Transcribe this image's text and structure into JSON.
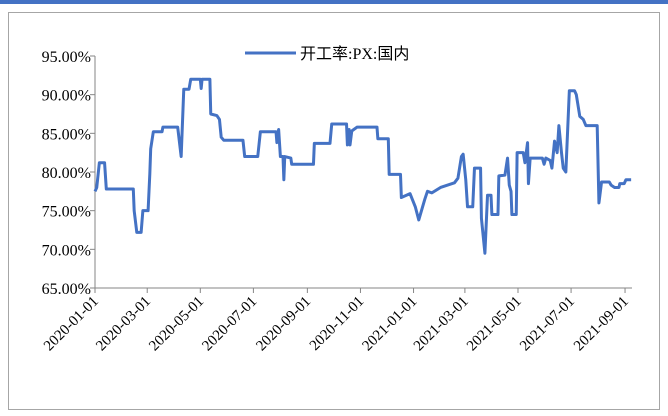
{
  "chart_data": {
    "type": "line",
    "x": [
      "2020-01-01",
      "2020-01-03",
      "2020-01-06",
      "2020-01-12",
      "2020-01-14",
      "2020-02-14",
      "2020-02-15",
      "2020-02-18",
      "2020-02-23",
      "2020-02-25",
      "2020-03-02",
      "2020-03-04",
      "2020-03-05",
      "2020-03-08",
      "2020-03-18",
      "2020-03-19",
      "2020-04-05",
      "2020-04-09",
      "2020-04-12",
      "2020-04-18",
      "2020-04-20",
      "2020-05-01",
      "2020-05-02",
      "2020-05-03",
      "2020-05-12",
      "2020-05-13",
      "2020-05-20",
      "2020-05-23",
      "2020-05-25",
      "2020-05-28",
      "2020-06-19",
      "2020-06-21",
      "2020-07-06",
      "2020-07-09",
      "2020-07-27",
      "2020-07-28",
      "2020-07-30",
      "2020-08-01",
      "2020-08-04",
      "2020-08-05",
      "2020-08-06",
      "2020-08-13",
      "2020-08-14",
      "2020-08-24",
      "2020-09-08",
      "2020-09-09",
      "2020-09-27",
      "2020-09-29",
      "2020-10-16",
      "2020-10-17",
      "2020-10-19",
      "2020-10-20",
      "2020-10-22",
      "2020-10-28",
      "2020-11-20",
      "2020-11-21",
      "2020-12-03",
      "2020-12-04",
      "2020-12-17",
      "2020-12-18",
      "2020-12-28",
      "2021-01-03",
      "2021-01-07",
      "2021-01-14",
      "2021-01-17",
      "2021-01-22",
      "2021-02-01",
      "2021-02-17",
      "2021-02-21",
      "2021-02-25",
      "2021-02-27",
      "2021-03-02",
      "2021-03-04",
      "2021-03-10",
      "2021-03-12",
      "2021-03-19",
      "2021-03-20",
      "2021-03-24",
      "2021-03-27",
      "2021-03-31",
      "2021-04-01",
      "2021-04-08",
      "2021-04-09",
      "2021-04-16",
      "2021-04-19",
      "2021-04-21",
      "2021-04-23",
      "2021-04-24",
      "2021-04-29",
      "2021-04-30",
      "2021-05-07",
      "2021-05-09",
      "2021-05-12",
      "2021-05-13",
      "2021-05-15",
      "2021-05-29",
      "2021-05-31",
      "2021-06-02",
      "2021-06-07",
      "2021-06-09",
      "2021-06-12",
      "2021-06-15",
      "2021-06-17",
      "2021-06-20",
      "2021-06-22",
      "2021-06-25",
      "2021-06-29",
      "2021-07-05",
      "2021-07-07",
      "2021-07-11",
      "2021-07-15",
      "2021-07-18",
      "2021-07-31",
      "2021-08-02",
      "2021-08-05",
      "2021-08-14",
      "2021-08-16",
      "2021-08-20",
      "2021-08-25",
      "2021-08-26",
      "2021-08-31",
      "2021-09-02",
      "2021-09-08"
    ],
    "series": [
      {
        "name": "开工率:PX:国内",
        "color": "#4472c4",
        "values": [
          77.5,
          78,
          81.2,
          81.2,
          77.8,
          77.8,
          75,
          72.2,
          72.2,
          75,
          75,
          79.8,
          83,
          85.2,
          85.2,
          85.8,
          85.8,
          82,
          90.7,
          90.7,
          92,
          92,
          90.8,
          92,
          92,
          87.5,
          87.3,
          86.8,
          84.5,
          84.1,
          84.1,
          82,
          82,
          85.2,
          85.2,
          83.8,
          85.5,
          82,
          82,
          79,
          82,
          81.8,
          81,
          81,
          81,
          83.7,
          83.7,
          86.2,
          86.2,
          83.5,
          85.5,
          83.5,
          85.3,
          85.8,
          85.8,
          84.3,
          84.3,
          79.7,
          79.7,
          76.7,
          77.2,
          75.5,
          73.8,
          76.5,
          77.5,
          77.3,
          78,
          78.6,
          79.2,
          82,
          82.3,
          79,
          75.5,
          75.5,
          80.5,
          80.5,
          74,
          69.5,
          77,
          77,
          74.5,
          74.5,
          79.5,
          79.6,
          81.8,
          78.3,
          77.5,
          74.5,
          74.5,
          82.5,
          82.5,
          81.2,
          83.8,
          78.5,
          81.8,
          81.8,
          81,
          81.8,
          81.5,
          80.5,
          84,
          82.5,
          86,
          82.5,
          80.5,
          80,
          90.5,
          90.5,
          90,
          87.2,
          86.8,
          86,
          86,
          76,
          78.7,
          78.7,
          78.3,
          78,
          78,
          78.5,
          78.5,
          79,
          79
        ]
      }
    ],
    "xlim": [
      "2020-01-01",
      "2021-09-09"
    ],
    "xticks": [
      "2020-01-01",
      "2020-03-01",
      "2020-05-01",
      "2020-07-01",
      "2020-09-01",
      "2020-11-01",
      "2021-01-01",
      "2021-03-01",
      "2021-05-01",
      "2021-07-01",
      "2021-09-01"
    ],
    "ylim": [
      65,
      95
    ],
    "yticks": [
      {
        "value": 65,
        "label": "65.00%"
      },
      {
        "value": 70,
        "label": "70.00%"
      },
      {
        "value": 75,
        "label": "75.00%"
      },
      {
        "value": 80,
        "label": "80.00%"
      },
      {
        "value": 85,
        "label": "85.00%"
      },
      {
        "value": 90,
        "label": "90.00%"
      },
      {
        "value": 95,
        "label": "95.00%"
      }
    ],
    "grid": false,
    "legend": "top"
  }
}
